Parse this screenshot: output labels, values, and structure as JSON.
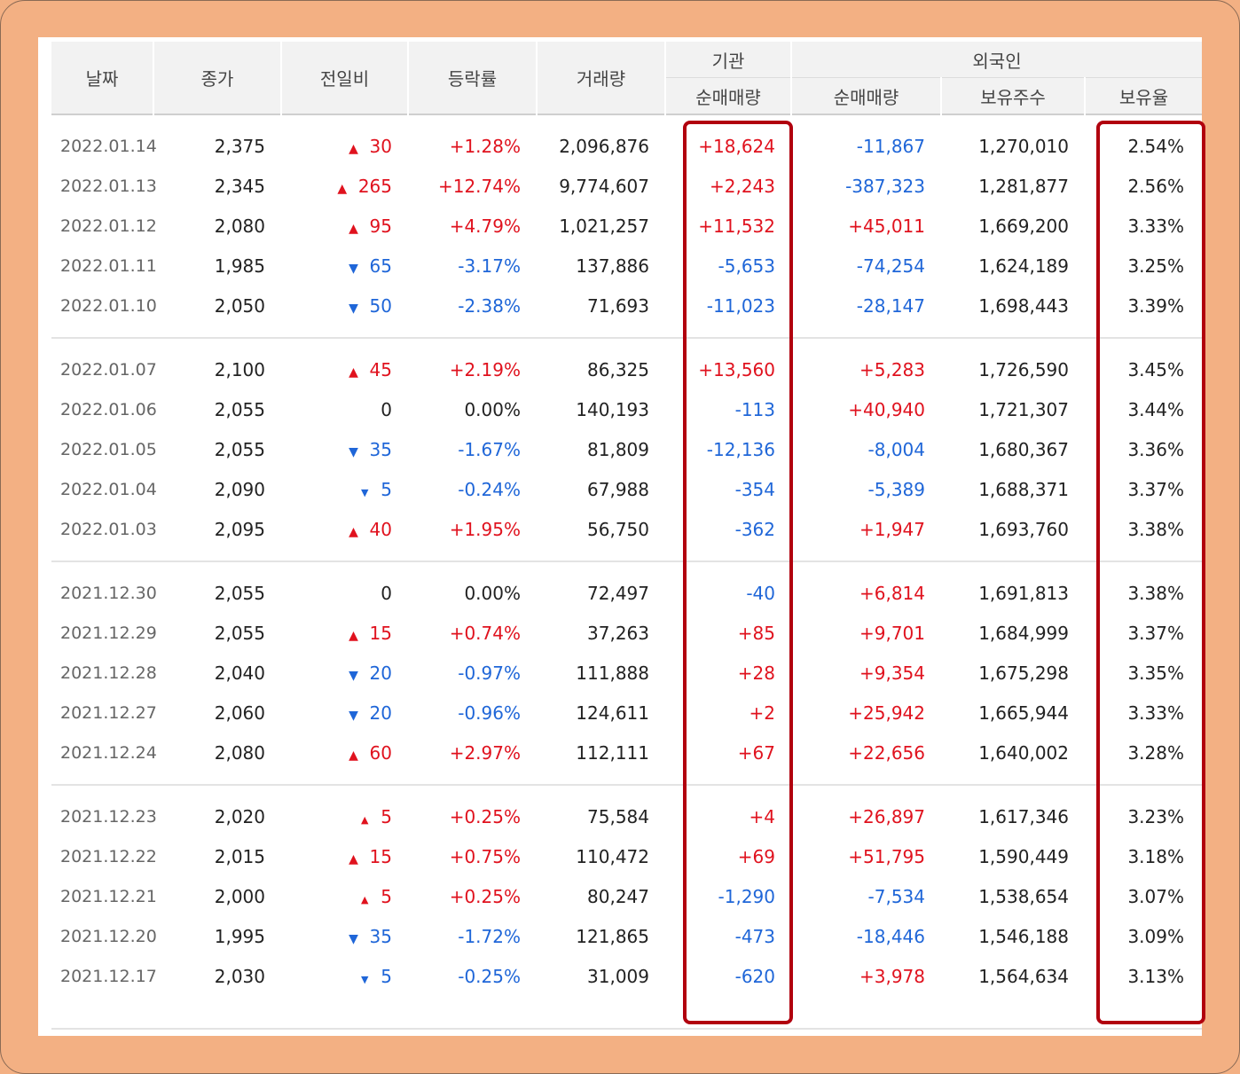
{
  "colors": {
    "frame": "#f3b083",
    "up": "#e0121e",
    "down": "#1f66d8",
    "highlight": "#b1000e"
  },
  "header": {
    "date": "날짜",
    "close": "종가",
    "diff": "전일비",
    "rate": "등락률",
    "volume": "거래량",
    "institution": "기관",
    "institution_net": "순매매량",
    "foreign": "외국인",
    "foreign_net": "순매매량",
    "foreign_hold": "보유주수",
    "foreign_ratio": "보유율"
  },
  "groups": [
    {
      "rows": [
        {
          "date": "2022.01.14",
          "close": "2,375",
          "dir": "up",
          "diff": "30",
          "rate": "+1.28%",
          "volume": "2,096,876",
          "inst": "+18,624",
          "fnet": "-11,867",
          "fhold": "1,270,010",
          "fratio": "2.54%"
        },
        {
          "date": "2022.01.13",
          "close": "2,345",
          "dir": "up",
          "diff": "265",
          "rate": "+12.74%",
          "volume": "9,774,607",
          "inst": "+2,243",
          "fnet": "-387,323",
          "fhold": "1,281,877",
          "fratio": "2.56%"
        },
        {
          "date": "2022.01.12",
          "close": "2,080",
          "dir": "up",
          "diff": "95",
          "rate": "+4.79%",
          "volume": "1,021,257",
          "inst": "+11,532",
          "fnet": "+45,011",
          "fhold": "1,669,200",
          "fratio": "3.33%"
        },
        {
          "date": "2022.01.11",
          "close": "1,985",
          "dir": "down",
          "diff": "65",
          "rate": "-3.17%",
          "volume": "137,886",
          "inst": "-5,653",
          "fnet": "-74,254",
          "fhold": "1,624,189",
          "fratio": "3.25%"
        },
        {
          "date": "2022.01.10",
          "close": "2,050",
          "dir": "down",
          "diff": "50",
          "rate": "-2.38%",
          "volume": "71,693",
          "inst": "-11,023",
          "fnet": "-28,147",
          "fhold": "1,698,443",
          "fratio": "3.39%"
        }
      ]
    },
    {
      "rows": [
        {
          "date": "2022.01.07",
          "close": "2,100",
          "dir": "up",
          "diff": "45",
          "rate": "+2.19%",
          "volume": "86,325",
          "inst": "+13,560",
          "fnet": "+5,283",
          "fhold": "1,726,590",
          "fratio": "3.45%"
        },
        {
          "date": "2022.01.06",
          "close": "2,055",
          "dir": "flat",
          "diff": "0",
          "rate": "0.00%",
          "volume": "140,193",
          "inst": "-113",
          "fnet": "+40,940",
          "fhold": "1,721,307",
          "fratio": "3.44%"
        },
        {
          "date": "2022.01.05",
          "close": "2,055",
          "dir": "down",
          "diff": "35",
          "rate": "-1.67%",
          "volume": "81,809",
          "inst": "-12,136",
          "fnet": "-8,004",
          "fhold": "1,680,367",
          "fratio": "3.36%"
        },
        {
          "date": "2022.01.04",
          "close": "2,090",
          "dir": "down",
          "diff": "5",
          "rate": "-0.24%",
          "volume": "67,988",
          "inst": "-354",
          "fnet": "-5,389",
          "fhold": "1,688,371",
          "fratio": "3.37%"
        },
        {
          "date": "2022.01.03",
          "close": "2,095",
          "dir": "up",
          "diff": "40",
          "rate": "+1.95%",
          "volume": "56,750",
          "inst": "-362",
          "fnet": "+1,947",
          "fhold": "1,693,760",
          "fratio": "3.38%"
        }
      ]
    },
    {
      "rows": [
        {
          "date": "2021.12.30",
          "close": "2,055",
          "dir": "flat",
          "diff": "0",
          "rate": "0.00%",
          "volume": "72,497",
          "inst": "-40",
          "fnet": "+6,814",
          "fhold": "1,691,813",
          "fratio": "3.38%"
        },
        {
          "date": "2021.12.29",
          "close": "2,055",
          "dir": "up",
          "diff": "15",
          "rate": "+0.74%",
          "volume": "37,263",
          "inst": "+85",
          "fnet": "+9,701",
          "fhold": "1,684,999",
          "fratio": "3.37%"
        },
        {
          "date": "2021.12.28",
          "close": "2,040",
          "dir": "down",
          "diff": "20",
          "rate": "-0.97%",
          "volume": "111,888",
          "inst": "+28",
          "fnet": "+9,354",
          "fhold": "1,675,298",
          "fratio": "3.35%"
        },
        {
          "date": "2021.12.27",
          "close": "2,060",
          "dir": "down",
          "diff": "20",
          "rate": "-0.96%",
          "volume": "124,611",
          "inst": "+2",
          "fnet": "+25,942",
          "fhold": "1,665,944",
          "fratio": "3.33%"
        },
        {
          "date": "2021.12.24",
          "close": "2,080",
          "dir": "up",
          "diff": "60",
          "rate": "+2.97%",
          "volume": "112,111",
          "inst": "+67",
          "fnet": "+22,656",
          "fhold": "1,640,002",
          "fratio": "3.28%"
        }
      ]
    },
    {
      "rows": [
        {
          "date": "2021.12.23",
          "close": "2,020",
          "dir": "up",
          "diff": "5",
          "rate": "+0.25%",
          "volume": "75,584",
          "inst": "+4",
          "fnet": "+26,897",
          "fhold": "1,617,346",
          "fratio": "3.23%"
        },
        {
          "date": "2021.12.22",
          "close": "2,015",
          "dir": "up",
          "diff": "15",
          "rate": "+0.75%",
          "volume": "110,472",
          "inst": "+69",
          "fnet": "+51,795",
          "fhold": "1,590,449",
          "fratio": "3.18%"
        },
        {
          "date": "2021.12.21",
          "close": "2,000",
          "dir": "up",
          "diff": "5",
          "rate": "+0.25%",
          "volume": "80,247",
          "inst": "-1,290",
          "fnet": "-7,534",
          "fhold": "1,538,654",
          "fratio": "3.07%"
        },
        {
          "date": "2021.12.20",
          "close": "1,995",
          "dir": "down",
          "diff": "35",
          "rate": "-1.72%",
          "volume": "121,865",
          "inst": "-473",
          "fnet": "-18,446",
          "fhold": "1,546,188",
          "fratio": "3.09%"
        },
        {
          "date": "2021.12.17",
          "close": "2,030",
          "dir": "down",
          "diff": "5",
          "rate": "-0.25%",
          "volume": "31,009",
          "inst": "-620",
          "fnet": "+3,978",
          "fhold": "1,564,634",
          "fratio": "3.13%"
        }
      ]
    }
  ]
}
